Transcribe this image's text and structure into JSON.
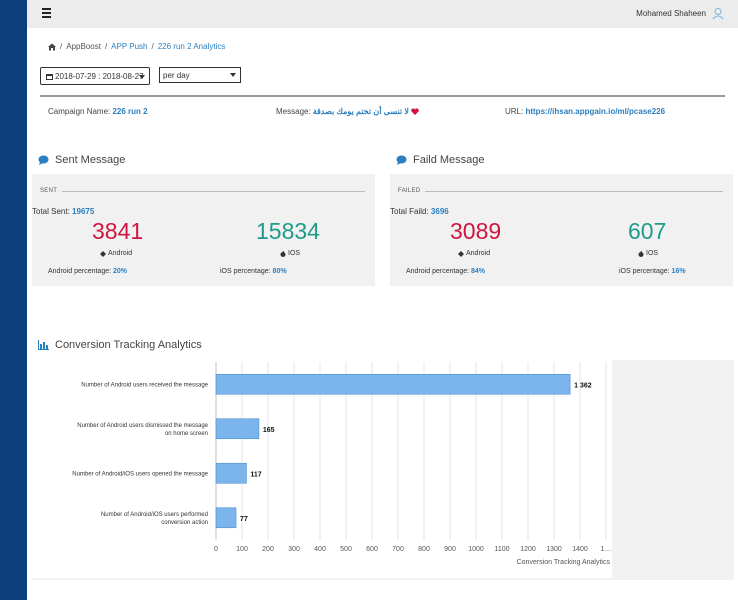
{
  "header": {
    "user_name": "Mohamed Shaheen"
  },
  "breadcrumb": {
    "items": [
      "AppBoost",
      "APP Push",
      "226 run 2 Analytics"
    ],
    "separator": "/"
  },
  "filters": {
    "date_range": "2018-07-29 : 2018-08-27",
    "period": "per day"
  },
  "campaign": {
    "name_label": "Campaign Name:",
    "name_value": "226 run 2",
    "message_label": "Message:",
    "message_value": "لا تنسى أن تختم يومك بصدقة",
    "url_label": "URL:",
    "url_value": "https://ihsan.appgain.io/ml/pcase226"
  },
  "sent": {
    "title": "Sent Message",
    "head": "SENT",
    "total_label": "Total Sent:",
    "total_value": "19675",
    "android_value": "3841",
    "android_label": "Android",
    "ios_value": "15834",
    "ios_label": "IOS",
    "android_pct_label": "Android percentage:",
    "android_pct_value": "20%",
    "ios_pct_label": "iOS percentage:",
    "ios_pct_value": "80%"
  },
  "failed": {
    "title": "Faild Message",
    "head": "FAILED",
    "total_label": "Total Faild:",
    "total_value": "3696",
    "android_value": "3089",
    "android_label": "Android",
    "ios_value": "607",
    "ios_label": "IOS",
    "android_pct_label": "Android percentage:",
    "android_pct_value": "84%",
    "ios_pct_label": "iOS percentage:",
    "ios_pct_value": "16%"
  },
  "conversion": {
    "title": "Conversion Tracking Analytics"
  },
  "colors": {
    "sidebar": "#0e3f7d",
    "accent": "#2a7fc1",
    "android_number": "#d0163e",
    "ios_number": "#1e9c8a",
    "bar_fill": "#7cb5ec"
  },
  "chart_data": {
    "type": "bar",
    "orientation": "horizontal",
    "categories": [
      "Number of Android users received the message",
      "Number of Android users dismissed the message on home screen",
      "Number of Android/iOS users opened the message",
      "Number of Android/iOS users performed conversion action"
    ],
    "values": [
      1362,
      165,
      117,
      77
    ],
    "value_labels": [
      "1 362",
      "165",
      "117",
      "77"
    ],
    "xlabel": "Conversion Tracking Analytics",
    "xlim": [
      0,
      1500
    ],
    "ticks": [
      "0",
      "100",
      "200",
      "300",
      "400",
      "500",
      "600",
      "700",
      "800",
      "900",
      "1000",
      "1100",
      "1200",
      "1300",
      "1400",
      "1…"
    ],
    "grid": true
  }
}
